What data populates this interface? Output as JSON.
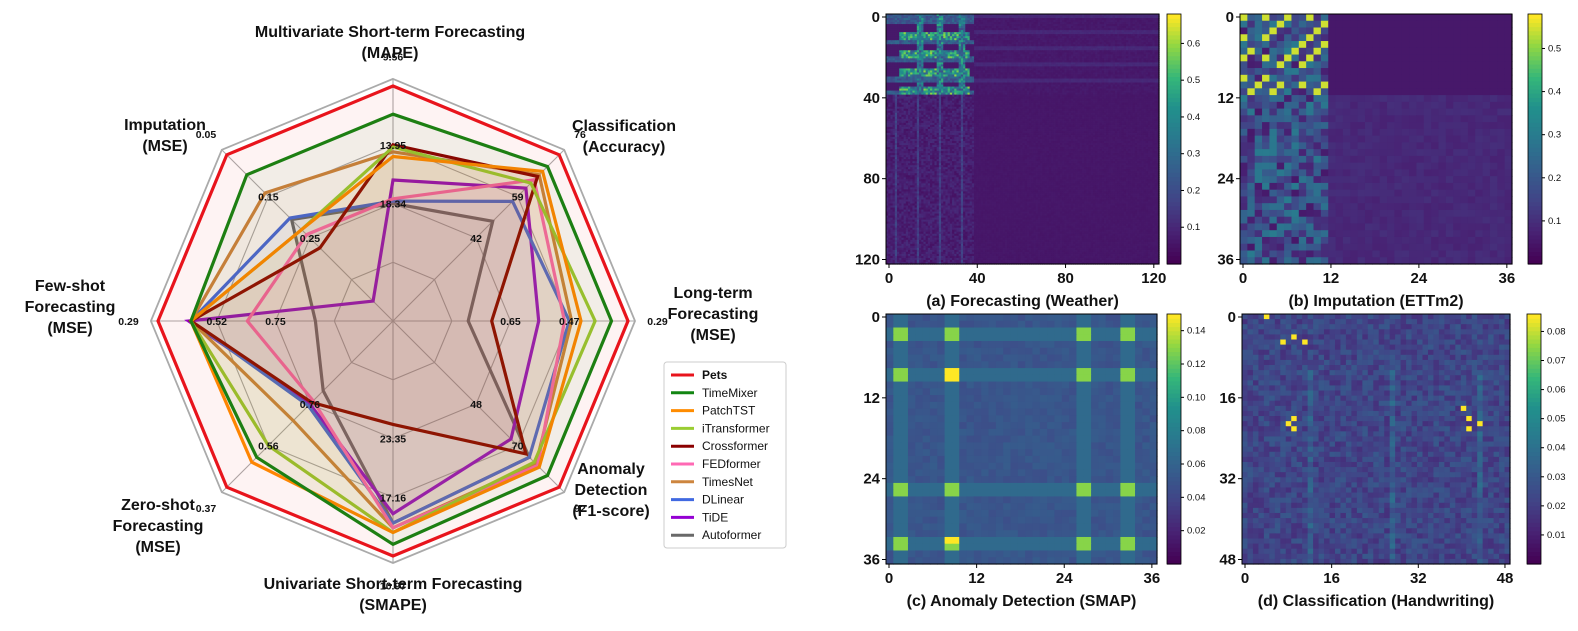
{
  "chart_data": [
    {
      "type": "radar",
      "axes": [
        {
          "label": [
            "Multivariate Short-term Forecasting",
            "(MAPE)"
          ],
          "ticks": [
            "9.56",
            "13.95",
            "18.34"
          ]
        },
        {
          "label": [
            "Classification",
            "(Accuracy)"
          ],
          "ticks": [
            "76",
            "59",
            "42"
          ]
        },
        {
          "label": [
            "Long-term",
            "Forecasting",
            "(MSE)"
          ],
          "ticks": [
            "0.29",
            "0.47",
            "0.65"
          ]
        },
        {
          "label": [
            "Anomaly",
            "Detection",
            "(F1-score)"
          ],
          "ticks": [
            "92",
            "70",
            "48"
          ]
        },
        {
          "label": [
            "Univariate Short-term Forecasting",
            "(SMAPE)"
          ],
          "ticks": [
            "10.97",
            "17.16",
            "23.35"
          ]
        },
        {
          "label": [
            "Zero-shot",
            "Forecasting",
            "(MSE)"
          ],
          "ticks": [
            "0.37",
            "0.56",
            "0.76"
          ]
        },
        {
          "label": [
            "Few-shot",
            "Forecasting",
            "(MSE)"
          ],
          "ticks": [
            "0.29",
            "0.52",
            "0.75"
          ]
        },
        {
          "label": [
            "Imputation",
            "(MSE)"
          ],
          "ticks": [
            "0.05",
            "0.15",
            "0.25"
          ]
        }
      ],
      "scale_note": "values are normalized radius (0 = center, 1 = outer ring labeled with best value)",
      "series": [
        {
          "name": "Pets",
          "color": "#e8141c",
          "bold": true,
          "values": [
            1.0,
            1.0,
            1.0,
            1.0,
            1.0,
            1.0,
            1.0,
            1.0
          ]
        },
        {
          "name": "TimeMixer",
          "color": "#128512",
          "values": [
            0.88,
            0.93,
            0.93,
            0.93,
            0.95,
            0.82,
            0.86,
            0.88
          ]
        },
        {
          "name": "PatchTST",
          "color": "#ff8c00",
          "values": [
            0.7,
            0.9,
            0.8,
            0.88,
            0.9,
            0.85,
            0.86,
            0.55
          ]
        },
        {
          "name": "iTransformer",
          "color": "#9acd32",
          "values": [
            0.74,
            0.83,
            0.86,
            0.85,
            0.9,
            0.75,
            0.86,
            0.55
          ]
        },
        {
          "name": "Crossformer",
          "color": "#8b0000",
          "values": [
            0.75,
            0.87,
            0.42,
            0.8,
            0.44,
            0.49,
            0.86,
            0.44
          ]
        },
        {
          "name": "FEDformer",
          "color": "#ff69b4",
          "values": [
            0.52,
            0.85,
            0.73,
            0.87,
            0.88,
            0.48,
            0.62,
            0.52
          ]
        },
        {
          "name": "TimesNet",
          "color": "#cd853f",
          "values": [
            0.72,
            0.88,
            0.76,
            0.86,
            0.88,
            0.6,
            0.86,
            0.77
          ]
        },
        {
          "name": "DLinear",
          "color": "#4169e1",
          "values": [
            0.51,
            0.72,
            0.75,
            0.82,
            0.86,
            0.51,
            0.86,
            0.62
          ]
        },
        {
          "name": "TiDE",
          "color": "#9400d3",
          "values": [
            0.6,
            0.8,
            0.62,
            0.71,
            0.82,
            0.5,
            0.87,
            0.12
          ]
        },
        {
          "name": "Autoformer",
          "color": "#696969",
          "values": [
            0.5,
            0.6,
            0.32,
            0.82,
            0.86,
            0.42,
            0.33,
            0.61
          ]
        }
      ]
    },
    {
      "type": "heatmap",
      "title": "(a) Forecasting (Weather)",
      "xticks": [
        "0",
        "40",
        "80",
        "120"
      ],
      "yticks": [
        "0",
        "40",
        "80",
        "120"
      ],
      "colorbar_ticks": [
        "0.1",
        "0.2",
        "0.3",
        "0.4",
        "0.5",
        "0.6"
      ],
      "colorbar_range": [
        0.0,
        0.68
      ]
    },
    {
      "type": "heatmap",
      "title": "(b) Imputation (ETTm2)",
      "xticks": [
        "0",
        "12",
        "24",
        "36"
      ],
      "yticks": [
        "0",
        "12",
        "24",
        "36"
      ],
      "colorbar_ticks": [
        "0.1",
        "0.2",
        "0.3",
        "0.4",
        "0.5"
      ],
      "colorbar_range": [
        0.0,
        0.58
      ]
    },
    {
      "type": "heatmap",
      "title": "(c) Anomaly Detection (SMAP)",
      "xticks": [
        "0",
        "12",
        "24",
        "36"
      ],
      "yticks": [
        "0",
        "12",
        "24",
        "36"
      ],
      "colorbar_ticks": [
        "0.02",
        "0.04",
        "0.06",
        "0.08",
        "0.10",
        "0.12",
        "0.14"
      ],
      "colorbar_range": [
        0.0,
        0.15
      ]
    },
    {
      "type": "heatmap",
      "title": "(d) Classification (Handwriting)",
      "xticks": [
        "0",
        "16",
        "32",
        "48"
      ],
      "yticks": [
        "0",
        "16",
        "32",
        "48"
      ],
      "colorbar_ticks": [
        "0.01",
        "0.02",
        "0.03",
        "0.04",
        "0.05",
        "0.06",
        "0.07",
        "0.08"
      ],
      "colorbar_range": [
        0.0,
        0.086
      ]
    }
  ]
}
